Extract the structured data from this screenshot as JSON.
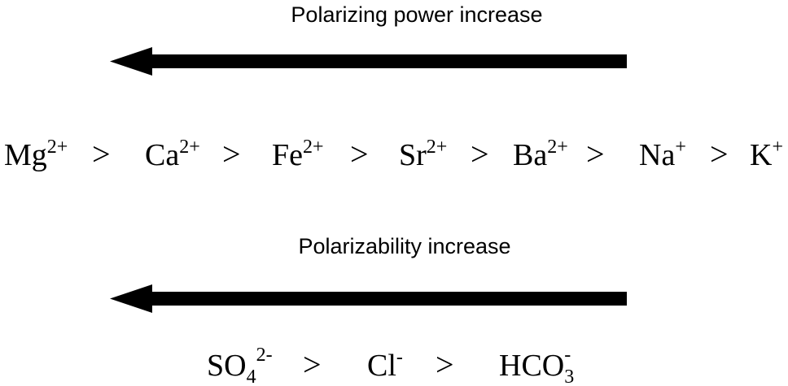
{
  "top_label": "Polarizing power increase",
  "cations": {
    "separator": ">",
    "items": [
      {
        "base": "Mg",
        "sup": "2+"
      },
      {
        "base": "Ca",
        "sup": "2+"
      },
      {
        "base": "Fe",
        "sup": "2+"
      },
      {
        "base": "Sr",
        "sup": "2+"
      },
      {
        "base": "Ba",
        "sup": "2+"
      },
      {
        "base": "Na",
        "sup": "+"
      },
      {
        "base": "K",
        "sup": "+"
      }
    ]
  },
  "bottom_label": "Polarizability increase",
  "anions": {
    "separator": ">",
    "items": [
      {
        "base": "SO",
        "sub": "4",
        "sup": "2-"
      },
      {
        "base": "Cl",
        "sup": "-"
      },
      {
        "base": "HCO",
        "sub": "3",
        "sup": "-"
      }
    ]
  }
}
